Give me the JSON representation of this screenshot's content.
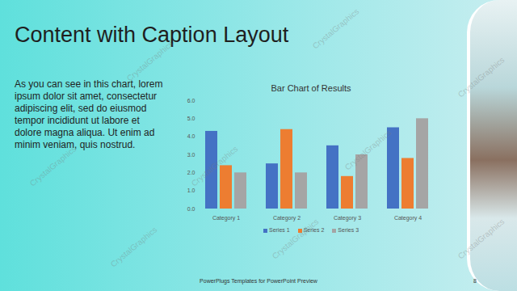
{
  "slide": {
    "heading": "Content with Caption Layout",
    "caption": "As you can see in this chart, lorem ipsum dolor sit amet, consectetur adipiscing elit, sed do eiusmod tempor incididunt ut labore et dolore magna aliqua. Ut enim ad minim veniam, quis nostrud.",
    "footer": "PowerPlugs Templates for PowerPoint Preview",
    "page_number": "8",
    "watermark": "CrystalGraphics"
  },
  "chart_data": {
    "type": "bar",
    "title": "Bar Chart of Results",
    "categories": [
      "Category 1",
      "Category 2",
      "Category 3",
      "Category 4"
    ],
    "series": [
      {
        "name": "Series 1",
        "color": "#4472c4",
        "values": [
          4.3,
          2.5,
          3.5,
          4.5
        ]
      },
      {
        "name": "Series 2",
        "color": "#ed7d31",
        "values": [
          2.4,
          4.4,
          1.8,
          2.8
        ]
      },
      {
        "name": "Series 3",
        "color": "#a5a5a5",
        "values": [
          2,
          2,
          3,
          5
        ]
      }
    ],
    "ylim": [
      0,
      6
    ],
    "yticks": [
      0,
      1,
      2,
      3,
      4,
      5,
      6
    ],
    "grid": false,
    "legend": "bottom"
  }
}
